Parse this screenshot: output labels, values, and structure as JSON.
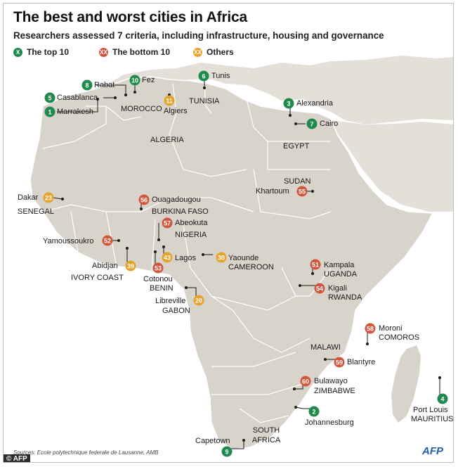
{
  "title": "The best and worst cities in Africa",
  "subtitle": "Researchers assessed 7 criteria, including infrastructure, housing and governance",
  "legend": [
    {
      "symbol": "X",
      "label": "The top 10",
      "category": "top"
    },
    {
      "symbol": "XX",
      "label": "The bottom 10",
      "category": "bottom"
    },
    {
      "symbol": "XX",
      "label": "Others",
      "category": "other"
    }
  ],
  "colors": {
    "top": "#1f8a4c",
    "bottom": "#d2563d",
    "other": "#e6a32b",
    "land": "#d8d3cb",
    "sea": "#ffffff"
  },
  "cities": [
    {
      "name": "Marrakesh",
      "rank": "1",
      "category": "top"
    },
    {
      "name": "Casablanca",
      "rank": "5",
      "category": "top"
    },
    {
      "name": "Rabat",
      "rank": "8",
      "category": "top"
    },
    {
      "name": "Fez",
      "rank": "10",
      "category": "top"
    },
    {
      "name": "Algiers",
      "rank": "11",
      "category": "other"
    },
    {
      "name": "Tunis",
      "rank": "6",
      "category": "top"
    },
    {
      "name": "Alexandria",
      "rank": "3",
      "category": "top"
    },
    {
      "name": "Cairo",
      "rank": "7",
      "category": "top"
    },
    {
      "name": "Khartoum",
      "rank": "55",
      "category": "bottom"
    },
    {
      "name": "Dakar",
      "rank": "23",
      "category": "other"
    },
    {
      "name": "Ouagadougou",
      "rank": "56",
      "category": "bottom"
    },
    {
      "name": "Abeokuta",
      "rank": "57",
      "category": "bottom"
    },
    {
      "name": "Yamoussoukro",
      "rank": "52",
      "category": "bottom"
    },
    {
      "name": "Abidjan",
      "rank": "39",
      "category": "other"
    },
    {
      "name": "Lagos",
      "rank": "43",
      "category": "other"
    },
    {
      "name": "Cotonou",
      "rank": "53",
      "category": "bottom"
    },
    {
      "name": "Yaounde",
      "rank": "30",
      "category": "other"
    },
    {
      "name": "Libreville",
      "rank": "20",
      "category": "other"
    },
    {
      "name": "Kampala",
      "rank": "51",
      "category": "bottom"
    },
    {
      "name": "Kigali",
      "rank": "54",
      "category": "bottom"
    },
    {
      "name": "Moroni",
      "rank": "58",
      "category": "bottom"
    },
    {
      "name": "Blantyre",
      "rank": "59",
      "category": "bottom"
    },
    {
      "name": "Bulawayo",
      "rank": "60",
      "category": "bottom"
    },
    {
      "name": "Johannesburg",
      "rank": "2",
      "category": "top"
    },
    {
      "name": "Port Louis",
      "rank": "4",
      "category": "top"
    },
    {
      "name": "Capetown",
      "rank": "9",
      "category": "top"
    }
  ],
  "countries": [
    "MOROCCO",
    "TUNISIA",
    "ALGERIA",
    "EGYPT",
    "SUDAN",
    "SENEGAL",
    "BURKINA FASO",
    "NIGERIA",
    "IVORY COAST",
    "BENIN",
    "CAMEROON",
    "GABON",
    "UGANDA",
    "RWANDA",
    "COMOROS",
    "MALAWI",
    "ZIMBABWE",
    "SOUTH AFRICA",
    "MAURITIUS"
  ],
  "source": "Sources: Ecole polytechnique federale de Lausanne, AMB",
  "copyright": "© AFP",
  "agency": "AFP"
}
